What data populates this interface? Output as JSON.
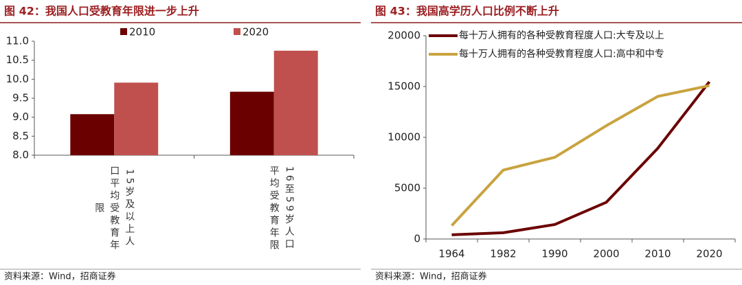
{
  "chart_data": [
    {
      "type": "bar",
      "title": "图 42：我国人口受教育年限进一步上升",
      "categories": [
        "15岁及以上人口平均受教育年限",
        "16至59岁人口平均受教育年限"
      ],
      "series": [
        {
          "name": "2010",
          "color": "#6b0000",
          "values": [
            9.08,
            9.67
          ]
        },
        {
          "name": "2020",
          "color": "#c0504d",
          "values": [
            9.91,
            10.75
          ]
        }
      ],
      "ylim": [
        8,
        11
      ],
      "yticks": [
        {
          "value": 8,
          "label": "8.0"
        },
        {
          "value": 8.5,
          "label": "8.5"
        },
        {
          "value": 9,
          "label": "9.0"
        },
        {
          "value": 9.5,
          "label": "9.5"
        },
        {
          "value": 10,
          "label": "10.0"
        },
        {
          "value": 10.5,
          "label": "10.5"
        },
        {
          "value": 11,
          "label": "11.0"
        }
      ],
      "source": "资料来源：Wind，招商证券"
    },
    {
      "type": "line",
      "title": "图 43：我国高学历人口比例不断上升",
      "categories": [
        "1964",
        "1982",
        "1990",
        "2000",
        "2010",
        "2020"
      ],
      "series": [
        {
          "name": "每十万人拥有的各种受教育程度人口:大专及以上",
          "color": "#6b0000",
          "values": [
            416,
            615,
            1422,
            3611,
            8930,
            15467
          ]
        },
        {
          "name": "每十万人拥有的各种受教育程度人口:高中和中专",
          "color": "#c9a33f",
          "values": [
            1319,
            6779,
            8039,
            11146,
            14032,
            15088
          ]
        }
      ],
      "ylim": [
        0,
        20000
      ],
      "yticks": [
        0,
        5000,
        10000,
        15000,
        20000
      ],
      "source": "资料来源：Wind，招商证券"
    }
  ]
}
